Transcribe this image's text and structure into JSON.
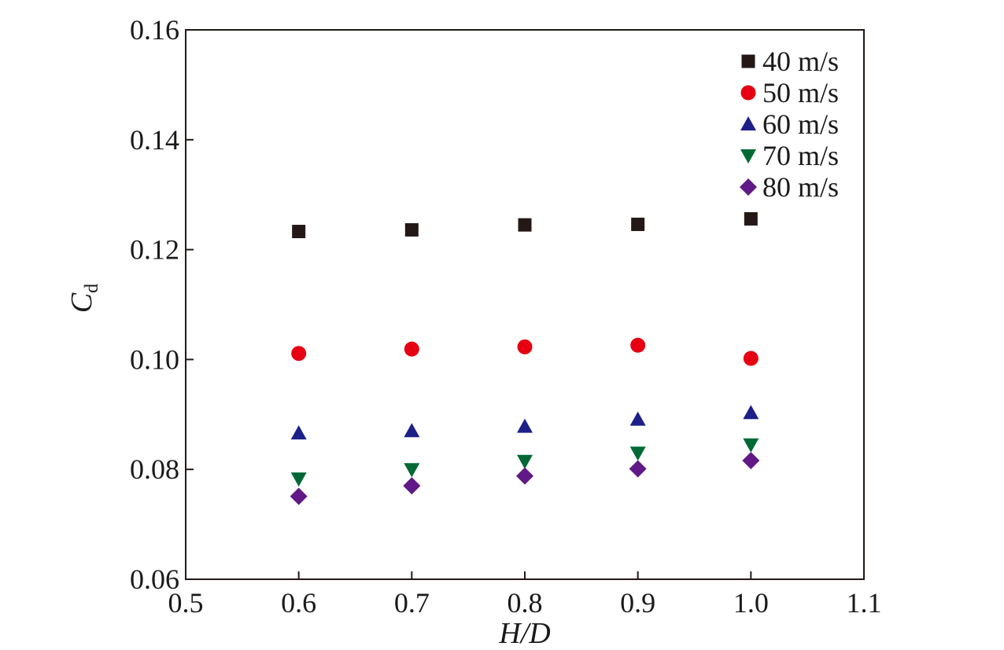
{
  "chart_data": {
    "type": "scatter",
    "x": [
      0.6,
      0.7,
      0.8,
      0.9,
      1.0
    ],
    "xlabel": "H/D",
    "ylabel_main": "C",
    "ylabel_sub": "d",
    "xlim": [
      0.5,
      1.1
    ],
    "ylim": [
      0.06,
      0.16
    ],
    "xticks": [
      0.5,
      0.6,
      0.7,
      0.8,
      0.9,
      1.0,
      1.1
    ],
    "xtick_labels": [
      "0.5",
      "0.6",
      "0.7",
      "0.8",
      "0.9",
      "1.0",
      "1.1"
    ],
    "yticks": [
      0.06,
      0.08,
      0.1,
      0.12,
      0.14,
      0.16
    ],
    "ytick_labels": [
      "0.06",
      "0.08",
      "0.10",
      "0.12",
      "0.14",
      "0.16"
    ],
    "grid": false,
    "legend_position": "top-right",
    "series": [
      {
        "name": "40 m/s",
        "marker": "square",
        "color": "#231815",
        "values": [
          0.1233,
          0.1236,
          0.1245,
          0.1246,
          0.1256
        ]
      },
      {
        "name": "50 m/s",
        "marker": "circle",
        "color": "#e60012",
        "values": [
          0.1011,
          0.1019,
          0.1023,
          0.1026,
          0.1002
        ]
      },
      {
        "name": "60 m/s",
        "marker": "triangle-up",
        "color": "#1d2088",
        "values": [
          0.0866,
          0.087,
          0.0878,
          0.0891,
          0.0903
        ]
      },
      {
        "name": "70 m/s",
        "marker": "triangle-down",
        "color": "#006934",
        "values": [
          0.0783,
          0.08,
          0.0815,
          0.083,
          0.0845
        ]
      },
      {
        "name": "80 m/s",
        "marker": "diamond",
        "color": "#601986",
        "values": [
          0.0751,
          0.077,
          0.0788,
          0.0801,
          0.0816
        ]
      }
    ]
  }
}
